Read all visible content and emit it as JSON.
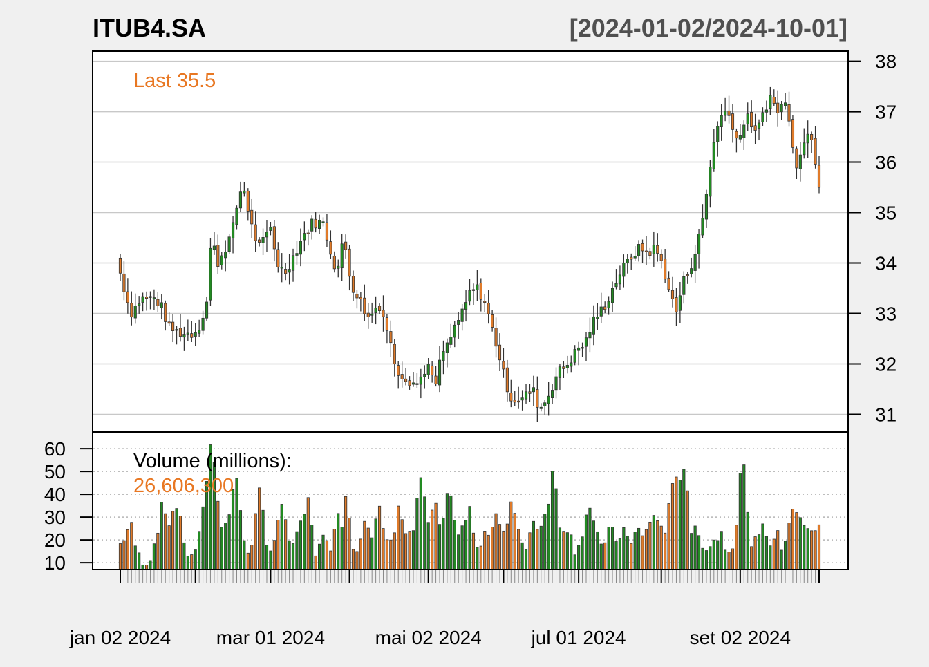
{
  "colors": {
    "background": "#f0f0f0",
    "panel": "#ffffff",
    "frame": "#000000",
    "grid": "#c8c8c8",
    "vol_grid": "#b4b4b4",
    "up": "#228b22",
    "down": "#e07b2a",
    "wick": "#333333",
    "title": "#000000",
    "range": "#505050",
    "last": "#e87722"
  },
  "chart_data": {
    "type": "candlestick",
    "title": "ITUB4.SA",
    "date_range_label": "[2024-01-02/2024-10-01]",
    "last_label": "Last 35.5",
    "volume_label": "Volume (millions):",
    "volume_value_label": "26,606,300",
    "price_axis": {
      "ticks": [
        31,
        32,
        33,
        34,
        35,
        36,
        37,
        38
      ],
      "ylim": [
        30.65,
        38.2
      ]
    },
    "volume_axis": {
      "ticks": [
        10,
        20,
        30,
        40,
        50,
        60
      ],
      "ylim": [
        7,
        67
      ]
    },
    "x_tick_labels": [
      {
        "label": "jan 02 2024",
        "index": 0
      },
      {
        "label": "mar 01 2024",
        "index": 40
      },
      {
        "label": "mai 02 2024",
        "index": 82
      },
      {
        "label": "jul 01 2024",
        "index": 122
      },
      {
        "label": "set 02 2024",
        "index": 165
      }
    ],
    "minor_tick_indices": [
      0,
      20,
      40,
      61,
      82,
      102,
      122,
      144,
      165,
      186
    ],
    "n_bars": 187,
    "close_anchors": [
      [
        0,
        33.8
      ],
      [
        3,
        33.0
      ],
      [
        6,
        33.3
      ],
      [
        10,
        33.3
      ],
      [
        12,
        33.1
      ],
      [
        14,
        32.7
      ],
      [
        18,
        32.6
      ],
      [
        21,
        32.6
      ],
      [
        23,
        32.8
      ],
      [
        25,
        33.3
      ],
      [
        26,
        34.5
      ],
      [
        28,
        34.0
      ],
      [
        32,
        34.6
      ],
      [
        33,
        35.0
      ],
      [
        35,
        35.6
      ],
      [
        38,
        34.6
      ],
      [
        40,
        34.3
      ],
      [
        43,
        34.7
      ],
      [
        45,
        34.0
      ],
      [
        47,
        33.8
      ],
      [
        50,
        34.2
      ],
      [
        52,
        34.5
      ],
      [
        55,
        34.8
      ],
      [
        58,
        34.8
      ],
      [
        60,
        34.3
      ],
      [
        62,
        33.8
      ],
      [
        64,
        34.5
      ],
      [
        66,
        33.6
      ],
      [
        69,
        33.2
      ],
      [
        71,
        32.9
      ],
      [
        74,
        33.2
      ],
      [
        76,
        32.8
      ],
      [
        79,
        31.9
      ],
      [
        82,
        31.7
      ],
      [
        85,
        31.6
      ],
      [
        88,
        32.0
      ],
      [
        90,
        31.5
      ],
      [
        92,
        32.2
      ],
      [
        94,
        32.4
      ],
      [
        96,
        32.8
      ],
      [
        98,
        33.0
      ],
      [
        100,
        33.4
      ],
      [
        102,
        33.5
      ],
      [
        104,
        33.3
      ],
      [
        106,
        32.8
      ],
      [
        108,
        32.3
      ],
      [
        110,
        31.7
      ],
      [
        112,
        31.3
      ],
      [
        115,
        31.3
      ],
      [
        118,
        31.5
      ],
      [
        120,
        31.1
      ],
      [
        122,
        31.3
      ],
      [
        125,
        31.8
      ],
      [
        128,
        32.0
      ],
      [
        131,
        32.3
      ],
      [
        133,
        32.4
      ],
      [
        135,
        32.8
      ],
      [
        137,
        33.0
      ],
      [
        139,
        33.2
      ],
      [
        141,
        33.5
      ],
      [
        143,
        33.8
      ],
      [
        145,
        34.0
      ],
      [
        147,
        34.2
      ],
      [
        149,
        34.3
      ],
      [
        151,
        34.2
      ],
      [
        153,
        34.3
      ],
      [
        155,
        34.0
      ],
      [
        157,
        33.5
      ],
      [
        159,
        33.0
      ],
      [
        161,
        33.6
      ],
      [
        163,
        33.9
      ],
      [
        165,
        34.3
      ],
      [
        167,
        35.0
      ],
      [
        169,
        36.0
      ],
      [
        170,
        36.5
      ],
      [
        172,
        36.9
      ],
      [
        174,
        37.1
      ],
      [
        176,
        36.4
      ],
      [
        178,
        36.7
      ],
      [
        180,
        36.9
      ],
      [
        182,
        36.5
      ],
      [
        184,
        37.0
      ],
      [
        186,
        37.3
      ],
      [
        188,
        37.0
      ],
      [
        190,
        37.2
      ],
      [
        192,
        36.8
      ],
      [
        193,
        35.9
      ],
      [
        195,
        36.2
      ],
      [
        197,
        36.7
      ],
      [
        198,
        36.5
      ],
      [
        200,
        35.5
      ]
    ],
    "volume_anchors": [
      [
        0,
        18
      ],
      [
        3,
        27
      ],
      [
        5,
        13
      ],
      [
        8,
        10
      ],
      [
        10,
        20
      ],
      [
        12,
        35
      ],
      [
        14,
        28
      ],
      [
        16,
        36
      ],
      [
        18,
        22
      ],
      [
        20,
        10
      ],
      [
        23,
        23
      ],
      [
        26,
        65
      ],
      [
        28,
        38
      ],
      [
        29,
        28
      ],
      [
        31,
        28
      ],
      [
        33,
        52
      ],
      [
        35,
        22
      ],
      [
        37,
        14
      ],
      [
        40,
        42
      ],
      [
        42,
        16
      ],
      [
        44,
        20
      ],
      [
        46,
        36
      ],
      [
        48,
        21
      ],
      [
        50,
        18
      ],
      [
        52,
        28
      ],
      [
        54,
        38
      ],
      [
        56,
        14
      ],
      [
        58,
        20
      ],
      [
        60,
        16
      ],
      [
        62,
        34
      ],
      [
        63,
        22
      ],
      [
        65,
        48
      ],
      [
        66,
        17
      ],
      [
        68,
        16
      ],
      [
        70,
        32
      ],
      [
        72,
        23
      ],
      [
        74,
        35
      ],
      [
        76,
        17
      ],
      [
        78,
        20
      ],
      [
        80,
        36
      ],
      [
        82,
        22
      ],
      [
        84,
        25
      ],
      [
        86,
        48
      ],
      [
        88,
        27
      ],
      [
        90,
        35
      ],
      [
        92,
        24
      ],
      [
        94,
        42
      ],
      [
        96,
        24
      ],
      [
        98,
        26
      ],
      [
        100,
        33
      ],
      [
        102,
        15
      ],
      [
        104,
        20
      ],
      [
        106,
        26
      ],
      [
        108,
        33
      ],
      [
        110,
        22
      ],
      [
        112,
        37
      ],
      [
        114,
        22
      ],
      [
        116,
        17
      ],
      [
        118,
        28
      ],
      [
        120,
        26
      ],
      [
        122,
        33
      ],
      [
        124,
        52
      ],
      [
        126,
        25
      ],
      [
        128,
        26
      ],
      [
        130,
        16
      ],
      [
        132,
        21
      ],
      [
        134,
        36
      ],
      [
        136,
        22
      ],
      [
        138,
        18
      ],
      [
        140,
        25
      ],
      [
        142,
        20
      ],
      [
        144,
        25
      ],
      [
        146,
        17
      ],
      [
        148,
        25
      ],
      [
        150,
        22
      ],
      [
        152,
        30
      ],
      [
        154,
        28
      ],
      [
        156,
        25
      ],
      [
        158,
        42
      ],
      [
        160,
        48
      ],
      [
        162,
        54
      ],
      [
        163,
        24
      ],
      [
        165,
        23
      ],
      [
        166,
        20
      ],
      [
        168,
        17
      ],
      [
        170,
        20
      ],
      [
        172,
        23
      ],
      [
        174,
        14
      ],
      [
        176,
        22
      ],
      [
        178,
        62
      ],
      [
        180,
        21
      ],
      [
        182,
        18
      ],
      [
        184,
        25
      ],
      [
        186,
        20
      ],
      [
        188,
        22
      ],
      [
        190,
        15
      ],
      [
        192,
        35
      ],
      [
        194,
        33
      ],
      [
        196,
        22
      ],
      [
        197,
        27
      ],
      [
        199,
        25
      ],
      [
        200,
        27
      ]
    ]
  }
}
